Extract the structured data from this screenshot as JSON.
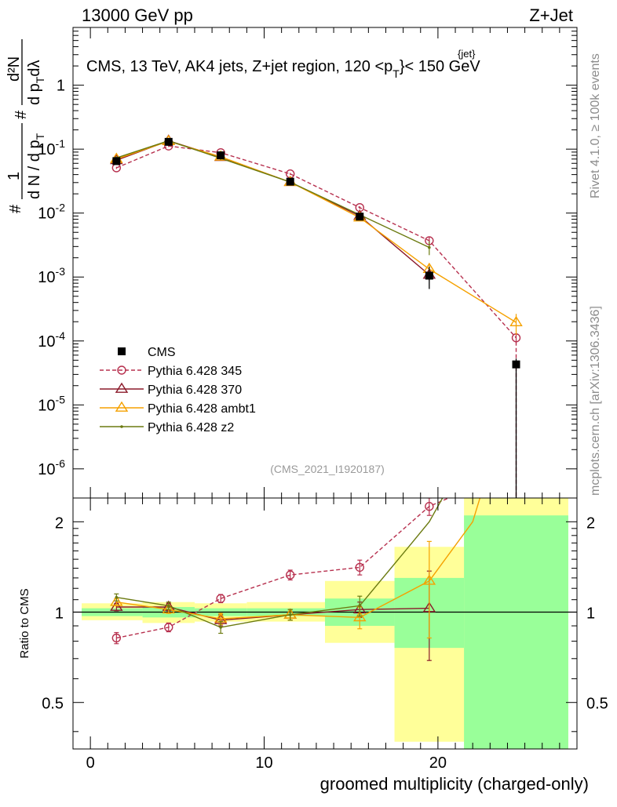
{
  "header": {
    "left": "13000 GeV pp",
    "right": "Z+Jet"
  },
  "title": "CMS, 13 TeV, AK4 jets, Z+jet region, 120 <p",
  "title_sub": "T",
  "title_sup": "{jet}",
  "title_end": "}< 150 GeV",
  "side": {
    "rivet": "Rivet 4.1.0, ≥ 100k events",
    "mcplots": "mcplots.cern.ch [arXiv:1306.3436]"
  },
  "analysis_id": "(CMS_2021_I1920187)",
  "y_label": {
    "hash": "#",
    "one": "1",
    "dN": "d N / d p",
    "T": "T",
    "num": "d²N",
    "den": "d p",
    "den_T": "T",
    "dl": "dλ"
  },
  "ratio_ylabel": "Ratio to CMS",
  "xlabel": "groomed multiplicity (charged-only)",
  "colors": {
    "cms": "#000000",
    "p345": "#b7304e",
    "p370": "#8b1a2a",
    "ambt1": "#f5a100",
    "z2": "#6b7a10",
    "band_inner": "#99ff99",
    "band_outer": "#ffff99"
  },
  "chart_data": [
    {
      "type": "scatter",
      "title": "CMS, 13 TeV, AK4 jets, Z+jet region, 120 < pT(jet) < 150 GeV",
      "yscale": "log",
      "ylim": [
        3.5e-07,
        8
      ],
      "xlim": [
        -1,
        28
      ],
      "y_ticks": [
        {
          "v": 1,
          "base": "1",
          "exp": ""
        },
        {
          "v": 0.1,
          "base": "10",
          "exp": "-1"
        },
        {
          "v": 0.01,
          "base": "10",
          "exp": "-2"
        },
        {
          "v": 0.001,
          "base": "10",
          "exp": "-3"
        },
        {
          "v": 0.0001,
          "base": "10",
          "exp": "-4"
        },
        {
          "v": 1e-05,
          "base": "10",
          "exp": "-5"
        },
        {
          "v": 1e-06,
          "base": "10",
          "exp": "-6"
        }
      ],
      "legend": [
        {
          "key": "cms",
          "label": "CMS"
        },
        {
          "key": "p345",
          "label": "Pythia 6.428 345"
        },
        {
          "key": "p370",
          "label": "Pythia 6.428 370"
        },
        {
          "key": "ambt1",
          "label": "Pythia 6.428 ambt1"
        },
        {
          "key": "z2",
          "label": "Pythia 6.428 z2"
        }
      ],
      "data": {
        "name": "CMS",
        "x": [
          1.5,
          4.5,
          7.5,
          11.5,
          15.5,
          19.5,
          24.5
        ],
        "y": [
          0.065,
          0.13,
          0.08,
          0.031,
          0.0088,
          0.00105,
          4.3e-05
        ],
        "yerr_lo": [
          0.005,
          0.01,
          0.006,
          0.0025,
          0.001,
          0.0004,
          4.3e-05
        ],
        "yerr_hi": [
          0.005,
          0.01,
          0.006,
          0.0025,
          0.001,
          0.0004,
          1e-05
        ]
      },
      "series": [
        {
          "key": "p345",
          "name": "Pythia 6.428 345",
          "dashed": true,
          "marker": "circle",
          "x": [
            1.5,
            4.5,
            7.5,
            11.5,
            15.5,
            19.5,
            24.5
          ],
          "y": [
            0.051,
            0.112,
            0.088,
            0.041,
            0.0122,
            0.0037,
            0.000112
          ],
          "err": [
            0.002,
            0.004,
            0.003,
            0.0015,
            0.0006,
            0.0006,
            2e-05
          ]
        },
        {
          "key": "p370",
          "name": "Pythia 6.428 370",
          "dashed": false,
          "marker": "triangle",
          "x": [
            1.5,
            4.5,
            7.5,
            11.5,
            15.5,
            19.5
          ],
          "y": [
            0.067,
            0.135,
            0.075,
            0.0305,
            0.009,
            0.00108
          ],
          "err": [
            0.002,
            0.004,
            0.003,
            0.001,
            0.0004,
            0.0002
          ]
        },
        {
          "key": "ambt1",
          "name": "Pythia 6.428 ambt1",
          "dashed": false,
          "marker": "triangle",
          "x": [
            1.5,
            4.5,
            7.5,
            11.5,
            15.5,
            19.5,
            24.5
          ],
          "y": [
            0.07,
            0.133,
            0.076,
            0.0305,
            0.0085,
            0.00133,
            0.000195
          ],
          "err": [
            0.002,
            0.004,
            0.003,
            0.001,
            0.0004,
            0.0003,
            7e-05
          ]
        },
        {
          "key": "z2",
          "name": "Pythia 6.428 z2",
          "dashed": false,
          "marker": "dot",
          "x": [
            1.5,
            4.5,
            7.5,
            11.5,
            15.5,
            19.5
          ],
          "y": [
            0.073,
            0.135,
            0.072,
            0.0305,
            0.0094,
            0.0029
          ],
          "err": [
            0.002,
            0.004,
            0.003,
            0.001,
            0.0004,
            0.0007
          ]
        }
      ]
    },
    {
      "type": "scatter",
      "title": "Ratio to CMS",
      "ylabel": "Ratio to CMS",
      "xlabel": "groomed multiplicity (charged-only)",
      "yscale": "log",
      "ylim": [
        0.35,
        2.4
      ],
      "xlim": [
        -1,
        28
      ],
      "y_ticks": [
        {
          "v": 0.5,
          "label": "0.5"
        },
        {
          "v": 1,
          "label": "1"
        },
        {
          "v": 2,
          "label": "2"
        }
      ],
      "x_ticks": [
        0,
        10,
        20
      ],
      "bands": [
        {
          "x0": -0.5,
          "x1": 3,
          "inner": [
            0.97,
            1.03
          ],
          "outer": [
            0.94,
            1.07
          ]
        },
        {
          "x0": 3,
          "x1": 6,
          "inner": [
            0.96,
            1.04
          ],
          "outer": [
            0.92,
            1.08
          ]
        },
        {
          "x0": 6,
          "x1": 9,
          "inner": [
            0.97,
            1.03
          ],
          "outer": [
            0.93,
            1.07
          ]
        },
        {
          "x0": 9,
          "x1": 13.5,
          "inner": [
            0.97,
            1.03
          ],
          "outer": [
            0.93,
            1.08
          ]
        },
        {
          "x0": 13.5,
          "x1": 17.5,
          "inner": [
            0.9,
            1.11
          ],
          "outer": [
            0.79,
            1.27
          ]
        },
        {
          "x0": 17.5,
          "x1": 21.5,
          "inner": [
            0.76,
            1.3
          ],
          "outer": [
            0.37,
            1.65
          ]
        },
        {
          "x0": 21.5,
          "x1": 27.5,
          "inner": [
            0.35,
            2.1
          ],
          "outer": [
            0.35,
            2.4
          ]
        }
      ],
      "series": [
        {
          "key": "p345",
          "dashed": true,
          "marker": "circle",
          "x": [
            1.5,
            4.5,
            7.5,
            11.5,
            15.5,
            19.5,
            22.0
          ],
          "y": [
            0.82,
            0.89,
            1.11,
            1.33,
            1.41,
            2.25,
            2.6
          ],
          "err": [
            0.035,
            0.03,
            0.035,
            0.05,
            0.08,
            0.15,
            0
          ]
        },
        {
          "key": "p370",
          "dashed": false,
          "marker": "triangle",
          "x": [
            1.5,
            4.5,
            7.5,
            11.5,
            15.5,
            19.5
          ],
          "y": [
            1.04,
            1.04,
            0.94,
            0.98,
            1.02,
            1.03
          ],
          "err": [
            0.03,
            0.03,
            0.04,
            0.04,
            0.06,
            0.34
          ]
        },
        {
          "key": "ambt1",
          "dashed": false,
          "marker": "triangle",
          "x": [
            1.5,
            4.5,
            7.5,
            11.5,
            15.5,
            19.5,
            22.0,
            22.6
          ],
          "y": [
            1.08,
            1.02,
            0.95,
            0.98,
            0.96,
            1.27,
            2.0,
            2.6
          ],
          "err": [
            0.03,
            0.03,
            0.04,
            0.04,
            0.08,
            0.45,
            0,
            0
          ]
        },
        {
          "key": "z2",
          "dashed": false,
          "marker": "dot",
          "x": [
            1.5,
            4.5,
            7.5,
            11.5,
            15.5,
            18.5,
            19.5,
            20.6
          ],
          "y": [
            1.12,
            1.05,
            0.89,
            0.98,
            1.05,
            1.7,
            2.0,
            2.6
          ],
          "err": [
            0.03,
            0.03,
            0.04,
            0.04,
            0.08,
            0,
            0,
            0
          ]
        }
      ]
    }
  ]
}
